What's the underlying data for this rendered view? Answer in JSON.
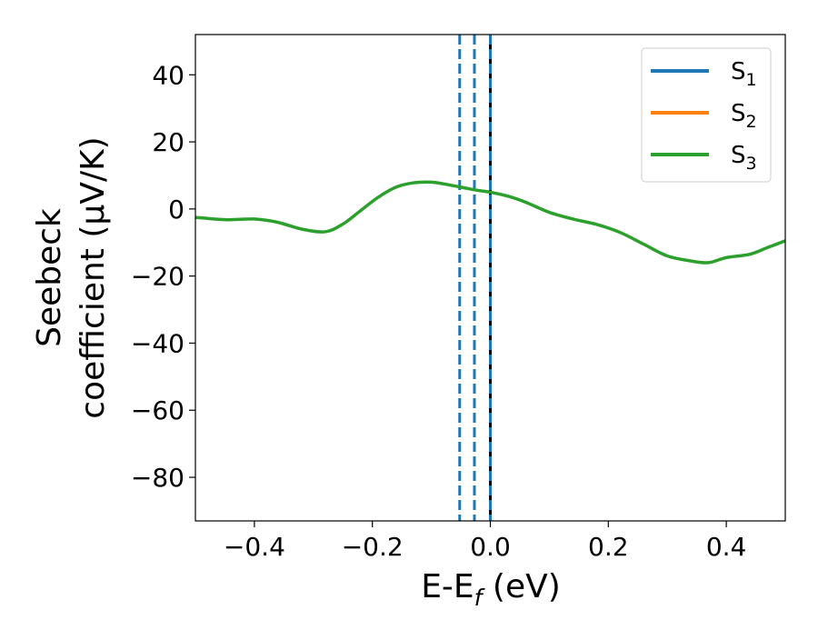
{
  "chart_data": {
    "type": "line",
    "xlabel": {
      "main": "E-E",
      "sub": "f",
      "tail": " (eV)"
    },
    "ylabel_lines": [
      "Seebeck",
      "coefficient  (μV/K)"
    ],
    "xlim": [
      -0.5,
      0.5
    ],
    "ylim": [
      -93,
      52
    ],
    "xticks": [
      -0.4,
      -0.2,
      0.0,
      0.2,
      0.4
    ],
    "xtick_labels": [
      "−0.4",
      "−0.2",
      "0.0",
      "0.2",
      "0.4"
    ],
    "yticks": [
      -80,
      -60,
      -40,
      -20,
      0,
      20,
      40
    ],
    "ytick_labels": [
      "−80",
      "−60",
      "−40",
      "−20",
      "0",
      "20",
      "40"
    ],
    "grid": false,
    "legend_position": "top-right",
    "legend": [
      {
        "main": "S",
        "sub": "1",
        "color": "#1f77b4"
      },
      {
        "main": "S",
        "sub": "2",
        "color": "#ff7f0e"
      },
      {
        "main": "S",
        "sub": "3",
        "color": "#2ca02c"
      }
    ],
    "series": [
      {
        "color": "#2ca02c",
        "x": [
          -0.5,
          -0.45,
          -0.4,
          -0.36,
          -0.32,
          -0.28,
          -0.25,
          -0.22,
          -0.19,
          -0.16,
          -0.13,
          -0.1,
          -0.08,
          -0.05,
          -0.02,
          0.0,
          0.03,
          0.06,
          0.1,
          0.14,
          0.18,
          0.22,
          0.26,
          0.3,
          0.34,
          0.37,
          0.4,
          0.44,
          0.47,
          0.5
        ],
        "y": [
          -2.5,
          -3.2,
          -3.0,
          -4.0,
          -6.0,
          -6.8,
          -4.5,
          -0.5,
          3.5,
          6.5,
          7.8,
          8.0,
          7.5,
          6.5,
          5.5,
          5.0,
          3.8,
          2.0,
          -1.0,
          -3.0,
          -4.6,
          -7.0,
          -10.5,
          -14.0,
          -15.5,
          -16.0,
          -14.5,
          -13.5,
          -11.5,
          -9.5
        ]
      }
    ],
    "vertical_lines": [
      {
        "x": -0.052,
        "style": "dashed",
        "color": "#1f77b4"
      },
      {
        "x": -0.027,
        "style": "dashed",
        "color": "#1f77b4"
      },
      {
        "x": 0.0,
        "style": "solid",
        "color": "#000000"
      },
      {
        "x": 0.0,
        "style": "dashed",
        "color": "#1f77b4"
      }
    ]
  }
}
